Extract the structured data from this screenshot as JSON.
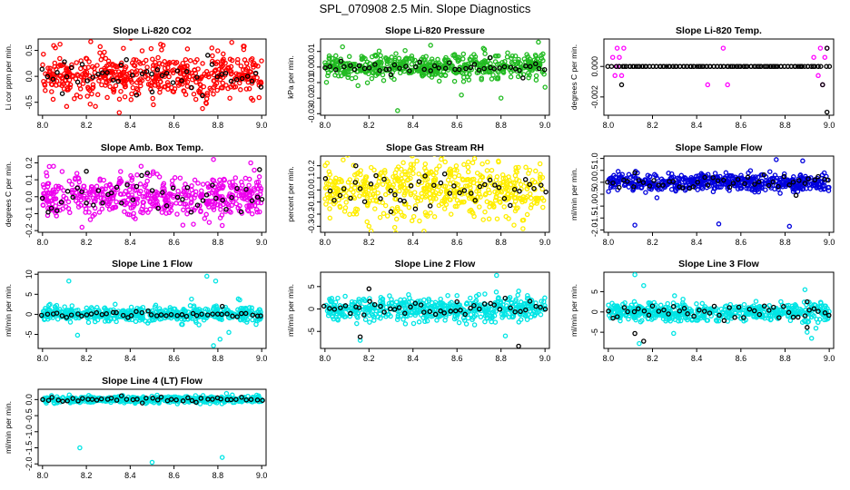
{
  "title": "SPL_070908  2.5 Min. Slope Diagnostics",
  "chart_data": [
    {
      "type": "scatter",
      "title": "Slope Li-820 CO2",
      "ylabel": "Li cor ppm per min.",
      "xlabel": "",
      "xlim": [
        7.98,
        9.02
      ],
      "ylim": [
        -0.75,
        0.72
      ],
      "xticks": [
        8.0,
        8.2,
        8.4,
        8.6,
        8.8,
        9.0
      ],
      "xtick_labels": [
        "8.0",
        "8.2",
        "8.4",
        "8.6",
        "8.8",
        "9.0"
      ],
      "yticks": [
        -0.5,
        0.0,
        0.5
      ],
      "ytick_labels": [
        "-0.5",
        "0.0",
        "0.5"
      ],
      "series": [
        {
          "color": "#ff0000",
          "n": 520,
          "spread": 0.22,
          "outliers": [
            [
              8.08,
              0.62
            ],
            [
              8.11,
              -0.58
            ],
            [
              8.22,
              0.67
            ],
            [
              8.35,
              -0.7
            ],
            [
              8.55,
              0.6
            ],
            [
              8.73,
              -0.62
            ],
            [
              8.92,
              0.58
            ]
          ]
        },
        {
          "color": "#000000",
          "n": 45,
          "spread": 0.14,
          "outliers": [
            [
              8.1,
              0.28
            ],
            [
              8.5,
              -0.3
            ]
          ]
        }
      ]
    },
    {
      "type": "scatter",
      "title": "Slope Li-820 Pressure",
      "ylabel": "kPa per min.",
      "xlabel": "",
      "xlim": [
        7.98,
        9.02
      ],
      "ylim": [
        -0.031,
        0.018
      ],
      "xticks": [
        8.0,
        8.2,
        8.4,
        8.6,
        8.8,
        9.0
      ],
      "xtick_labels": [
        "8.0",
        "8.2",
        "8.4",
        "8.6",
        "8.8",
        "9.0"
      ],
      "yticks": [
        -0.03,
        -0.02,
        -0.01,
        0.0,
        0.01
      ],
      "ytick_labels": [
        "-0.03",
        "-0.02",
        "-0.01",
        "0.00",
        "0.01"
      ],
      "series": [
        {
          "color": "#22bb22",
          "n": 520,
          "spread": 0.0038,
          "outliers": [
            [
              8.08,
              0.013
            ],
            [
              8.15,
              -0.012
            ],
            [
              8.33,
              -0.028
            ],
            [
              8.48,
              0.014
            ],
            [
              8.62,
              -0.018
            ],
            [
              8.72,
              0.012
            ],
            [
              8.8,
              -0.02
            ],
            [
              8.97,
              0.016
            ],
            [
              9.0,
              -0.013
            ]
          ]
        },
        {
          "color": "#000000",
          "n": 45,
          "spread": 0.0015,
          "outliers": [
            [
              8.3,
              -0.005
            ],
            [
              8.75,
              0.006
            ],
            [
              8.9,
              -0.007
            ]
          ]
        }
      ]
    },
    {
      "type": "scatter",
      "title": "Slope Li-820 Temp.",
      "ylabel": "degrees C per min.",
      "xlabel": "",
      "xlim": [
        7.98,
        9.02
      ],
      "ylim": [
        -0.0032,
        0.0018
      ],
      "xticks": [
        8.0,
        8.2,
        8.4,
        8.6,
        8.8,
        9.0
      ],
      "xtick_labels": [
        "8.0",
        "8.2",
        "8.4",
        "8.6",
        "8.8",
        "9.0"
      ],
      "yticks": [
        -0.002,
        0.0
      ],
      "ytick_labels": [
        "-0.002",
        "0.000"
      ],
      "series": [
        {
          "color": "#ff00ff",
          "n": 0,
          "spread": 0,
          "outliers": [
            [
              8.02,
              0.0006
            ],
            [
              8.03,
              -0.0006
            ],
            [
              8.04,
              0.0012
            ],
            [
              8.05,
              0.0006
            ],
            [
              8.06,
              -0.0006
            ],
            [
              8.07,
              0.0012
            ],
            [
              8.04,
              0.0
            ],
            [
              8.45,
              -0.0012
            ],
            [
              8.52,
              0.0012
            ],
            [
              8.54,
              -0.0012
            ],
            [
              8.93,
              0.0006
            ],
            [
              8.95,
              -0.0006
            ],
            [
              8.96,
              0.0012
            ],
            [
              8.97,
              -0.0012
            ],
            [
              8.98,
              0.0006
            ],
            [
              8.99,
              0.0012
            ]
          ]
        },
        {
          "color": "#000000",
          "n": 60,
          "spread": 0,
          "outliers": [
            [
              8.06,
              -0.0012
            ],
            [
              8.97,
              -0.0012
            ],
            [
              8.99,
              0.0012
            ],
            [
              8.99,
              -0.003
            ]
          ]
        }
      ]
    },
    {
      "type": "scatter",
      "title": "Slope Amb. Box Temp.",
      "ylabel": "degrees C per min.",
      "xlabel": "",
      "xlim": [
        7.98,
        9.02
      ],
      "ylim": [
        -0.21,
        0.24
      ],
      "xticks": [
        8.0,
        8.2,
        8.4,
        8.6,
        8.8,
        9.0
      ],
      "xtick_labels": [
        "8.0",
        "8.2",
        "8.4",
        "8.6",
        "8.8",
        "9.0"
      ],
      "yticks": [
        -0.2,
        -0.1,
        0.0,
        0.1,
        0.2
      ],
      "ytick_labels": [
        "-0.2",
        "-0.1",
        "0.0",
        "0.1",
        "0.2"
      ],
      "series": [
        {
          "color": "#ee00ee",
          "n": 520,
          "spread": 0.06,
          "outliers": [
            [
              8.05,
              0.18
            ],
            [
              8.18,
              -0.18
            ],
            [
              8.45,
              0.18
            ],
            [
              8.78,
              0.22
            ],
            [
              8.82,
              -0.17
            ],
            [
              8.95,
              0.2
            ]
          ]
        },
        {
          "color": "#000000",
          "n": 45,
          "spread": 0.05,
          "outliers": [
            [
              8.99,
              0.16
            ],
            [
              8.2,
              0.15
            ]
          ]
        }
      ]
    },
    {
      "type": "scatter",
      "title": "Slope Gas Stream RH",
      "ylabel": "percent per min.",
      "xlabel": "",
      "xlim": [
        7.98,
        9.02
      ],
      "ylim": [
        -0.35,
        0.28
      ],
      "xticks": [
        8.0,
        8.2,
        8.4,
        8.6,
        8.8,
        9.0
      ],
      "xtick_labels": [
        "8.0",
        "8.2",
        "8.4",
        "8.6",
        "8.8",
        "9.0"
      ],
      "yticks": [
        -0.3,
        -0.2,
        -0.1,
        0.0,
        0.1,
        0.2
      ],
      "ytick_labels": [
        "-0.3",
        "-0.2",
        "-0.1",
        "0.0",
        "0.1",
        "0.2"
      ],
      "series": [
        {
          "color": "#ffee00",
          "n": 560,
          "spread": 0.12,
          "outliers": [
            [
              8.2,
              -0.3
            ],
            [
              8.45,
              -0.34
            ],
            [
              8.68,
              0.26
            ],
            [
              8.9,
              -0.32
            ]
          ]
        },
        {
          "color": "#000000",
          "n": 45,
          "spread": 0.08,
          "outliers": [
            [
              8.14,
              0.2
            ],
            [
              8.3,
              -0.18
            ]
          ]
        }
      ]
    },
    {
      "type": "scatter",
      "title": "Slope Sample Flow",
      "ylabel": "ml/min per min.",
      "xlabel": "",
      "xlim": [
        7.98,
        9.02
      ],
      "ylim": [
        -2.1,
        1.1
      ],
      "xticks": [
        8.0,
        8.2,
        8.4,
        8.6,
        8.8,
        9.0
      ],
      "xtick_labels": [
        "8.0",
        "8.2",
        "8.4",
        "8.6",
        "8.8",
        "9.0"
      ],
      "yticks": [
        -2.0,
        -1.5,
        -1.0,
        -0.5,
        0.0,
        0.5,
        1.0
      ],
      "ytick_labels": [
        "-2.0",
        "-1.5",
        "-1.0",
        "-0.5",
        "0.0",
        "0.5",
        "1.0"
      ],
      "series": [
        {
          "color": "#0000dd",
          "n": 520,
          "spread": 0.17,
          "outliers": [
            [
              8.12,
              -1.8
            ],
            [
              8.5,
              -1.75
            ],
            [
              8.76,
              0.95
            ],
            [
              8.82,
              -1.85
            ],
            [
              8.88,
              0.9
            ],
            [
              8.22,
              -0.65
            ]
          ]
        },
        {
          "color": "#000000",
          "n": 45,
          "spread": 0.12,
          "outliers": [
            [
              8.12,
              0.4
            ],
            [
              8.85,
              -0.55
            ]
          ]
        }
      ]
    },
    {
      "type": "scatter",
      "title": "Slope Line 1 Flow",
      "ylabel": "ml/min per min.",
      "xlabel": "",
      "xlim": [
        7.98,
        9.02
      ],
      "ylim": [
        -8.5,
        10.5
      ],
      "xticks": [
        8.0,
        8.2,
        8.4,
        8.6,
        8.8,
        9.0
      ],
      "xtick_labels": [
        "8.0",
        "8.2",
        "8.4",
        "8.6",
        "8.8",
        "9.0"
      ],
      "yticks": [
        -5,
        0,
        5,
        10
      ],
      "ytick_labels": [
        "-5",
        "0",
        "5",
        "10"
      ],
      "series": [
        {
          "color": "#00e5e5",
          "n": 520,
          "spread": 0.9,
          "outliers": [
            [
              8.12,
              8.3
            ],
            [
              8.16,
              -5.2
            ],
            [
              8.68,
              3.8
            ],
            [
              8.75,
              9.5
            ],
            [
              8.79,
              8.3
            ],
            [
              8.81,
              -6.2
            ],
            [
              8.85,
              -4.5
            ],
            [
              8.78,
              -7.8
            ],
            [
              8.9,
              3.6
            ]
          ]
        },
        {
          "color": "#000000",
          "n": 45,
          "spread": 0.35,
          "outliers": [
            [
              8.82,
              2.0
            ]
          ]
        }
      ]
    },
    {
      "type": "scatter",
      "title": "Slope Line 2 Flow",
      "ylabel": "ml/min per min.",
      "xlabel": "",
      "xlim": [
        7.98,
        9.02
      ],
      "ylim": [
        -8.8,
        8.2
      ],
      "xticks": [
        8.0,
        8.2,
        8.4,
        8.6,
        8.8,
        9.0
      ],
      "xtick_labels": [
        "8.0",
        "8.2",
        "8.4",
        "8.6",
        "8.8",
        "9.0"
      ],
      "yticks": [
        -5,
        0,
        5
      ],
      "ytick_labels": [
        "-5",
        "0",
        "5"
      ],
      "series": [
        {
          "color": "#00e5e5",
          "n": 520,
          "spread": 1.3,
          "outliers": [
            [
              8.16,
              -7.0
            ],
            [
              8.38,
              3.2
            ],
            [
              8.78,
              7.5
            ],
            [
              8.82,
              -6.0
            ],
            [
              8.88,
              4.0
            ],
            [
              8.92,
              3.0
            ]
          ]
        },
        {
          "color": "#000000",
          "n": 45,
          "spread": 0.9,
          "outliers": [
            [
              8.2,
              4.5
            ],
            [
              8.16,
              -6.2
            ],
            [
              8.88,
              -8.3
            ],
            [
              8.6,
              1.6
            ]
          ]
        }
      ]
    },
    {
      "type": "scatter",
      "title": "Slope Line 3 Flow",
      "ylabel": "ml/min per min.",
      "xlabel": "",
      "xlim": [
        7.98,
        9.02
      ],
      "ylim": [
        -9.0,
        9.8
      ],
      "xticks": [
        8.0,
        8.2,
        8.4,
        8.6,
        8.8,
        9.0
      ],
      "xtick_labels": [
        "8.0",
        "8.2",
        "8.4",
        "8.6",
        "8.8",
        "9.0"
      ],
      "yticks": [
        -5,
        0,
        5
      ],
      "ytick_labels": [
        "-5",
        "0",
        "5"
      ],
      "series": [
        {
          "color": "#00e5e5",
          "n": 520,
          "spread": 1.1,
          "outliers": [
            [
              8.12,
              9.2
            ],
            [
              8.14,
              -7.8
            ],
            [
              8.16,
              6.5
            ],
            [
              8.3,
              4.0
            ],
            [
              8.89,
              5.5
            ],
            [
              8.9,
              -5.0
            ],
            [
              8.92,
              -6.5
            ],
            [
              8.94,
              -4.0
            ]
          ]
        },
        {
          "color": "#000000",
          "n": 45,
          "spread": 0.8,
          "outliers": [
            [
              8.12,
              -5.3
            ],
            [
              8.16,
              -7.2
            ],
            [
              8.9,
              -3.8
            ],
            [
              8.9,
              2.5
            ]
          ]
        }
      ]
    },
    {
      "type": "scatter",
      "title": "Slope Line 4 (LT) Flow",
      "ylabel": "ml/min per min.",
      "xlabel": "",
      "xlim": [
        7.98,
        9.02
      ],
      "ylim": [
        -2.05,
        0.32
      ],
      "xticks": [
        8.0,
        8.2,
        8.4,
        8.6,
        8.8,
        9.0
      ],
      "xtick_labels": [
        "8.0",
        "8.2",
        "8.4",
        "8.6",
        "8.8",
        "9.0"
      ],
      "yticks": [
        -2.0,
        -1.5,
        -1.0,
        -0.5,
        0.0
      ],
      "ytick_labels": [
        "-2.0",
        "-1.5",
        "-1.0",
        "-0.5",
        "0.0"
      ],
      "series": [
        {
          "color": "#00e5e5",
          "n": 520,
          "spread": 0.05,
          "outliers": [
            [
              8.17,
              -1.5
            ],
            [
              8.5,
              -1.95
            ],
            [
              8.82,
              -1.8
            ]
          ]
        },
        {
          "color": "#000000",
          "n": 45,
          "spread": 0.04,
          "outliers": []
        }
      ]
    }
  ]
}
